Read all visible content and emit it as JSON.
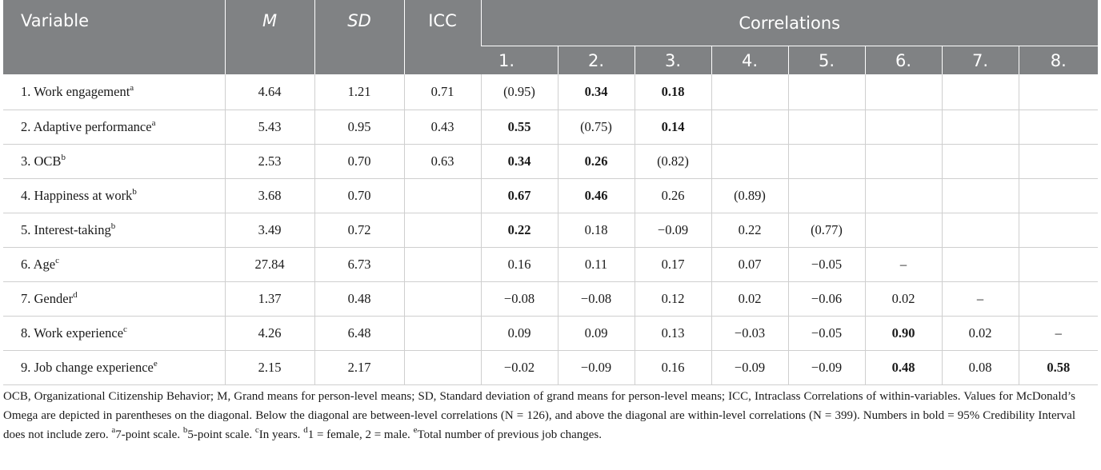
{
  "header": {
    "variable": "Variable",
    "m": "M",
    "sd": "SD",
    "icc": "ICC",
    "correlations": "Correlations",
    "corr_cols": [
      "1.",
      "2.",
      "3.",
      "4.",
      "5.",
      "6.",
      "7.",
      "8."
    ]
  },
  "rows": [
    {
      "label": "1. Work engagement",
      "sup": "a",
      "m": "4.64",
      "sd": "1.21",
      "icc": "0.71",
      "cells": [
        {
          "v": "(0.95)",
          "b": false
        },
        {
          "v": "0.34",
          "b": true
        },
        {
          "v": "0.18",
          "b": true
        },
        {
          "v": "",
          "b": false
        },
        {
          "v": "",
          "b": false
        },
        {
          "v": "",
          "b": false
        },
        {
          "v": "",
          "b": false
        },
        {
          "v": "",
          "b": false
        }
      ]
    },
    {
      "label": "2. Adaptive performance",
      "sup": "a",
      "m": "5.43",
      "sd": "0.95",
      "icc": "0.43",
      "cells": [
        {
          "v": "0.55",
          "b": true
        },
        {
          "v": "(0.75)",
          "b": false
        },
        {
          "v": "0.14",
          "b": true
        },
        {
          "v": "",
          "b": false
        },
        {
          "v": "",
          "b": false
        },
        {
          "v": "",
          "b": false
        },
        {
          "v": "",
          "b": false
        },
        {
          "v": "",
          "b": false
        }
      ]
    },
    {
      "label": "3. OCB",
      "sup": "b",
      "m": "2.53",
      "sd": "0.70",
      "icc": "0.63",
      "cells": [
        {
          "v": "0.34",
          "b": true
        },
        {
          "v": "0.26",
          "b": true
        },
        {
          "v": "(0.82)",
          "b": false
        },
        {
          "v": "",
          "b": false
        },
        {
          "v": "",
          "b": false
        },
        {
          "v": "",
          "b": false
        },
        {
          "v": "",
          "b": false
        },
        {
          "v": "",
          "b": false
        }
      ]
    },
    {
      "label": "4. Happiness at work",
      "sup": "b",
      "m": "3.68",
      "sd": "0.70",
      "icc": "",
      "cells": [
        {
          "v": "0.67",
          "b": true
        },
        {
          "v": "0.46",
          "b": true
        },
        {
          "v": "0.26",
          "b": false
        },
        {
          "v": "(0.89)",
          "b": false
        },
        {
          "v": "",
          "b": false
        },
        {
          "v": "",
          "b": false
        },
        {
          "v": "",
          "b": false
        },
        {
          "v": "",
          "b": false
        }
      ]
    },
    {
      "label": "5. Interest-taking",
      "sup": "b",
      "m": "3.49",
      "sd": "0.72",
      "icc": "",
      "cells": [
        {
          "v": "0.22",
          "b": true
        },
        {
          "v": "0.18",
          "b": false
        },
        {
          "v": "−0.09",
          "b": false
        },
        {
          "v": "0.22",
          "b": false
        },
        {
          "v": "(0.77)",
          "b": false
        },
        {
          "v": "",
          "b": false
        },
        {
          "v": "",
          "b": false
        },
        {
          "v": "",
          "b": false
        }
      ]
    },
    {
      "label": "6. Age",
      "sup": "c",
      "m": "27.84",
      "sd": "6.73",
      "icc": "",
      "cells": [
        {
          "v": "0.16",
          "b": false
        },
        {
          "v": "0.11",
          "b": false
        },
        {
          "v": "0.17",
          "b": false
        },
        {
          "v": "0.07",
          "b": false
        },
        {
          "v": "−0.05",
          "b": false
        },
        {
          "v": "–",
          "b": false
        },
        {
          "v": "",
          "b": false
        },
        {
          "v": "",
          "b": false
        }
      ]
    },
    {
      "label": "7. Gender",
      "sup": "d",
      "m": "1.37",
      "sd": "0.48",
      "icc": "",
      "cells": [
        {
          "v": "−0.08",
          "b": false
        },
        {
          "v": "−0.08",
          "b": false
        },
        {
          "v": "0.12",
          "b": false
        },
        {
          "v": "0.02",
          "b": false
        },
        {
          "v": "−0.06",
          "b": false
        },
        {
          "v": "0.02",
          "b": false
        },
        {
          "v": "–",
          "b": false
        },
        {
          "v": "",
          "b": false
        }
      ]
    },
    {
      "label": "8. Work experience",
      "sup": "c",
      "m": "4.26",
      "sd": "6.48",
      "icc": "",
      "cells": [
        {
          "v": "0.09",
          "b": false
        },
        {
          "v": "0.09",
          "b": false
        },
        {
          "v": "0.13",
          "b": false
        },
        {
          "v": "−0.03",
          "b": false
        },
        {
          "v": "−0.05",
          "b": false
        },
        {
          "v": "0.90",
          "b": true
        },
        {
          "v": "0.02",
          "b": false
        },
        {
          "v": "–",
          "b": false
        }
      ]
    },
    {
      "label": "9. Job change experience",
      "sup": "e",
      "m": "2.15",
      "sd": "2.17",
      "icc": "",
      "cells": [
        {
          "v": "−0.02",
          "b": false
        },
        {
          "v": "−0.09",
          "b": false
        },
        {
          "v": "0.16",
          "b": false
        },
        {
          "v": "−0.09",
          "b": false
        },
        {
          "v": "−0.09",
          "b": false
        },
        {
          "v": "0.48",
          "b": true
        },
        {
          "v": "0.08",
          "b": false
        },
        {
          "v": "0.58",
          "b": true
        }
      ]
    }
  ],
  "note": {
    "text": "OCB, Organizational Citizenship Behavior; M, Grand means for person-level means; SD, Standard deviation of grand means for person-level means; ICC, Intraclass Correlations of within-variables. Values for McDonald’s Omega are depicted in parentheses on the diagonal. Below the diagonal are between-level correlations (N = 126), and above the diagonal are within-level correlations (N = 399). Numbers in bold = 95% Credibility Interval does not include zero.",
    "sup_a": "a",
    "a": "7-point scale.",
    "sup_b": "b",
    "b": "5-point scale.",
    "sup_c": "c",
    "c": "In years.",
    "sup_d": "d",
    "d": "1 = female, 2 = male.",
    "sup_e": "e",
    "e": "Total number of previous job changes."
  }
}
